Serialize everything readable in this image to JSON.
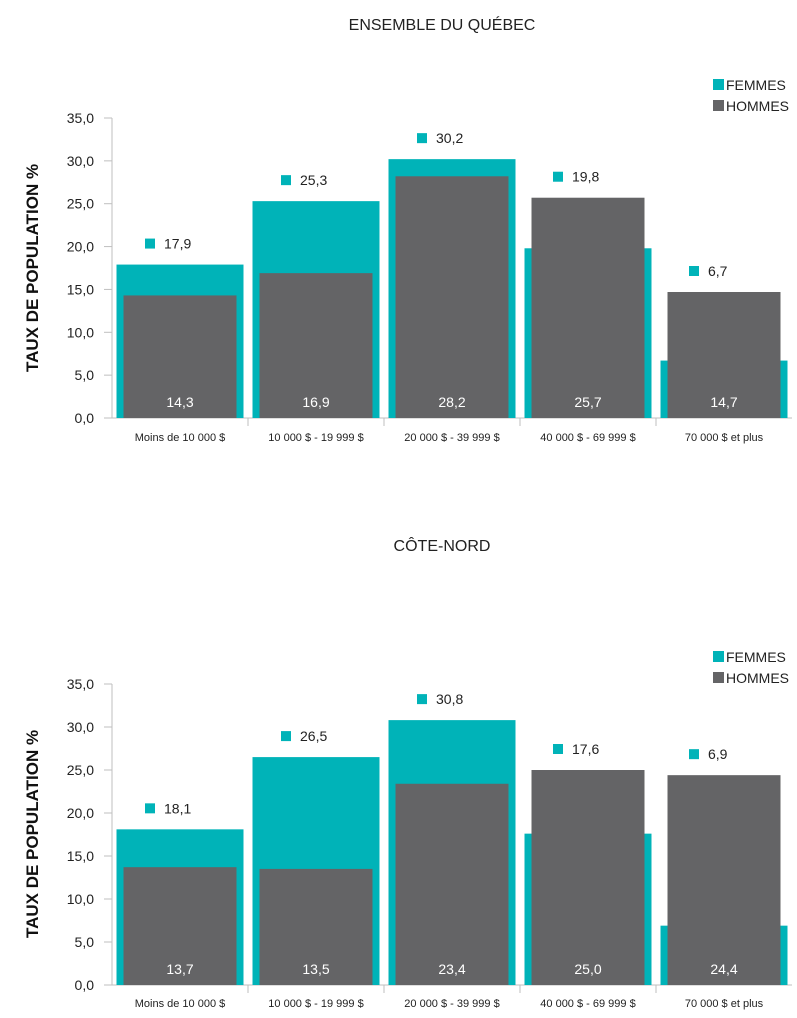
{
  "colors": {
    "femmes": "#00B3B8",
    "hommes": "#646466",
    "axis": "#bfbfbf",
    "text": "#222222"
  },
  "chart_data": [
    {
      "type": "bar",
      "title": "ENSEMBLE DU QUÉBEC",
      "ylabel": "TAUX DE POPULATION %",
      "ylim": [
        0,
        35
      ],
      "yticks": [
        "0,0",
        "5,0",
        "10,0",
        "15,0",
        "20,0",
        "25,0",
        "30,0",
        "35,0"
      ],
      "categories": [
        "Moins de 10 000 $",
        "10 000 $ - 19 999 $",
        "20 000 $ - 39 999 $",
        "40 000 $ - 69 999 $",
        "70 000 $ et plus"
      ],
      "legend": "top-right",
      "series": [
        {
          "name": "FEMMES",
          "values": [
            17.9,
            25.3,
            30.2,
            19.8,
            6.7
          ],
          "labels": [
            "17,9",
            "25,3",
            "30,2",
            "19,8",
            "6,7"
          ]
        },
        {
          "name": "HOMMES",
          "values": [
            14.3,
            16.9,
            28.2,
            25.7,
            14.7
          ],
          "labels": [
            "14,3",
            "16,9",
            "28,2",
            "25,7",
            "14,7"
          ]
        }
      ]
    },
    {
      "type": "bar",
      "title": "CÔTE-NORD",
      "ylabel": "TAUX DE POPULATION %",
      "ylim": [
        0,
        35
      ],
      "yticks": [
        "0,0",
        "5,0",
        "10,0",
        "15,0",
        "20,0",
        "25,0",
        "30,0",
        "35,0"
      ],
      "categories": [
        "Moins de 10 000 $",
        "10 000 $ - 19 999 $",
        "20 000 $ - 39 999 $",
        "40 000 $ - 69 999 $",
        "70 000 $ et plus"
      ],
      "legend": "top-right",
      "series": [
        {
          "name": "FEMMES",
          "values": [
            18.1,
            26.5,
            30.8,
            17.6,
            6.9
          ],
          "labels": [
            "18,1",
            "26,5",
            "30,8",
            "17,6",
            "6,9"
          ]
        },
        {
          "name": "HOMMES",
          "values": [
            13.7,
            13.5,
            23.4,
            25.0,
            24.4
          ],
          "labels": [
            "13,7",
            "13,5",
            "23,4",
            "25,0",
            "24,4"
          ]
        }
      ]
    }
  ]
}
